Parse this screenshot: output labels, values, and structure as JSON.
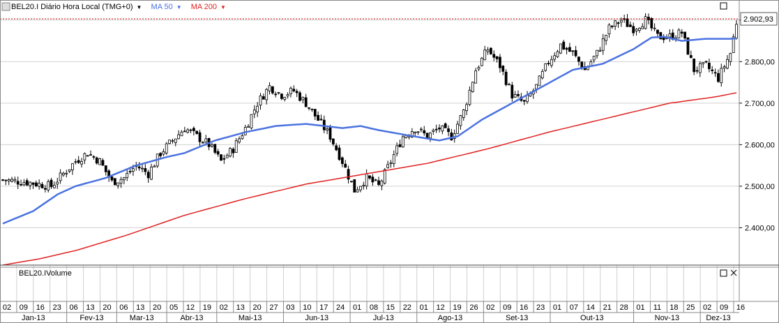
{
  "header": {
    "symbol_label": "BEL20.I Diário Hora Local (TMG+0)",
    "ma50_label": "MA 50",
    "ma200_label": "MA 200",
    "dropdown_glyph": "▼"
  },
  "volume_panel": {
    "title": "BEL20.IVolume"
  },
  "colors": {
    "ma50": "#4a72e0",
    "ma200": "#e02020",
    "grid": "#d0d0d0",
    "price_line": "#cc0000",
    "candle": "#000000"
  },
  "chart_data": {
    "type": "candlestick",
    "last_price_label": "2.902,93",
    "last_price": 2902.93,
    "y_ticks": [
      {
        "value": 2900,
        "label": "2.900,00"
      },
      {
        "value": 2800,
        "label": "2.800,00"
      },
      {
        "value": 2700,
        "label": "2.700,00"
      },
      {
        "value": 2600,
        "label": "2.600,00"
      },
      {
        "value": 2500,
        "label": "2.500,00"
      },
      {
        "value": 2400,
        "label": "2.400,00"
      }
    ],
    "ylim": [
      2310,
      2945
    ],
    "x_days": [
      "02",
      "09",
      "16",
      "23",
      "06",
      "13",
      "20",
      "06",
      "13",
      "20",
      "05",
      "12",
      "19",
      "02",
      "13",
      "20",
      "27",
      "03",
      "10",
      "17",
      "24",
      "01",
      "08",
      "15",
      "22",
      "01",
      "12",
      "19",
      "26",
      "02",
      "09",
      "16",
      "23",
      "01",
      "07",
      "14",
      "21",
      "28",
      "01",
      "11",
      "18",
      "25",
      "02",
      "09",
      "16"
    ],
    "x_months": [
      "Jan-13",
      "Fev-13",
      "Mar-13",
      "Abr-13",
      "Mai-13",
      "Jun-13",
      "Jul-13",
      "Ago-13",
      "Set-13",
      "Out-13",
      "Nov-13",
      "Dez-13"
    ],
    "close_path": [
      [
        0,
        2515
      ],
      [
        8,
        2510
      ],
      [
        16,
        2500
      ],
      [
        20,
        2530
      ],
      [
        24,
        2560
      ],
      [
        28,
        2580
      ],
      [
        32,
        2560
      ],
      [
        36,
        2510
      ],
      [
        40,
        2520
      ],
      [
        44,
        2550
      ],
      [
        48,
        2530
      ],
      [
        52,
        2580
      ],
      [
        56,
        2610
      ],
      [
        60,
        2640
      ],
      [
        64,
        2620
      ],
      [
        68,
        2600
      ],
      [
        72,
        2560
      ],
      [
        76,
        2590
      ],
      [
        80,
        2640
      ],
      [
        84,
        2700
      ],
      [
        88,
        2740
      ],
      [
        92,
        2720
      ],
      [
        96,
        2730
      ],
      [
        100,
        2700
      ],
      [
        104,
        2660
      ],
      [
        108,
        2620
      ],
      [
        112,
        2560
      ],
      [
        116,
        2490
      ],
      [
        120,
        2520
      ],
      [
        124,
        2500
      ],
      [
        128,
        2560
      ],
      [
        132,
        2620
      ],
      [
        136,
        2640
      ],
      [
        140,
        2620
      ],
      [
        144,
        2640
      ],
      [
        148,
        2620
      ],
      [
        152,
        2680
      ],
      [
        156,
        2780
      ],
      [
        160,
        2830
      ],
      [
        164,
        2790
      ],
      [
        168,
        2720
      ],
      [
        172,
        2700
      ],
      [
        176,
        2740
      ],
      [
        180,
        2800
      ],
      [
        184,
        2840
      ],
      [
        188,
        2820
      ],
      [
        192,
        2780
      ],
      [
        196,
        2820
      ],
      [
        200,
        2880
      ],
      [
        204,
        2900
      ],
      [
        208,
        2880
      ],
      [
        212,
        2900
      ],
      [
        216,
        2860
      ],
      [
        220,
        2860
      ],
      [
        224,
        2870
      ],
      [
        228,
        2780
      ],
      [
        232,
        2790
      ],
      [
        236,
        2760
      ],
      [
        240,
        2820
      ],
      [
        242,
        2895
      ]
    ],
    "ma50": [
      [
        0,
        2410
      ],
      [
        10,
        2440
      ],
      [
        18,
        2480
      ],
      [
        24,
        2500
      ],
      [
        34,
        2520
      ],
      [
        44,
        2550
      ],
      [
        54,
        2570
      ],
      [
        60,
        2580
      ],
      [
        70,
        2610
      ],
      [
        80,
        2630
      ],
      [
        90,
        2645
      ],
      [
        100,
        2650
      ],
      [
        106,
        2645
      ],
      [
        112,
        2640
      ],
      [
        118,
        2645
      ],
      [
        124,
        2635
      ],
      [
        134,
        2622
      ],
      [
        144,
        2610
      ],
      [
        150,
        2620
      ],
      [
        158,
        2660
      ],
      [
        168,
        2700
      ],
      [
        178,
        2740
      ],
      [
        188,
        2780
      ],
      [
        198,
        2795
      ],
      [
        208,
        2830
      ],
      [
        214,
        2858
      ],
      [
        218,
        2860
      ],
      [
        224,
        2850
      ],
      [
        232,
        2855
      ],
      [
        240,
        2855
      ],
      [
        242,
        2856
      ]
    ],
    "ma200": [
      [
        0,
        2310
      ],
      [
        12,
        2325
      ],
      [
        24,
        2345
      ],
      [
        40,
        2380
      ],
      [
        60,
        2430
      ],
      [
        80,
        2470
      ],
      [
        100,
        2505
      ],
      [
        120,
        2530
      ],
      [
        140,
        2555
      ],
      [
        160,
        2590
      ],
      [
        180,
        2630
      ],
      [
        200,
        2665
      ],
      [
        220,
        2700
      ],
      [
        235,
        2715
      ],
      [
        242,
        2725
      ]
    ]
  }
}
